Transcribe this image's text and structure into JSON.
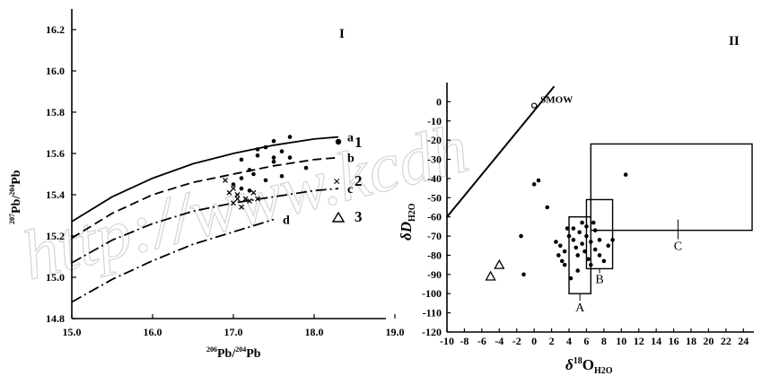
{
  "watermark": "http://www.kcdh",
  "chart_data": [
    {
      "panel_label": "I",
      "type": "scatter",
      "xlabel_parts": [
        "206",
        "Pb/",
        "204",
        "Pb"
      ],
      "ylabel_parts": [
        "207",
        "Pb/",
        "204",
        "Pb"
      ],
      "xlim": [
        15.0,
        20.0
      ],
      "ylim": [
        14.8,
        16.3
      ],
      "x_ticks": [
        15.0,
        16.0,
        17.0,
        18.0,
        19.0
      ],
      "x_tick_labels": [
        "15.0",
        "16.0",
        "17.0",
        "18.0",
        "19.0"
      ],
      "y_ticks": [
        14.8,
        15.0,
        15.2,
        15.4,
        15.6,
        15.8,
        16.0,
        16.2
      ],
      "y_tick_labels": [
        "14.8",
        "15.0",
        "15.2",
        "15.4",
        "15.6",
        "15.8",
        "16.0",
        "16.2"
      ],
      "curves": [
        {
          "label": "a",
          "style": "solid",
          "points": [
            [
              15.0,
              15.27
            ],
            [
              15.5,
              15.39
            ],
            [
              16.0,
              15.48
            ],
            [
              16.5,
              15.55
            ],
            [
              17.0,
              15.6
            ],
            [
              17.5,
              15.64
            ],
            [
              18.0,
              15.67
            ],
            [
              18.3,
              15.68
            ]
          ]
        },
        {
          "label": "b",
          "style": "dashed",
          "points": [
            [
              15.0,
              15.19
            ],
            [
              15.5,
              15.31
            ],
            [
              16.0,
              15.4
            ],
            [
              16.5,
              15.46
            ],
            [
              17.0,
              15.5
            ],
            [
              17.5,
              15.54
            ],
            [
              18.0,
              15.57
            ],
            [
              18.3,
              15.58
            ]
          ]
        },
        {
          "label": "c",
          "style": "dashdot",
          "points": [
            [
              15.0,
              15.07
            ],
            [
              15.5,
              15.18
            ],
            [
              16.0,
              15.26
            ],
            [
              16.5,
              15.32
            ],
            [
              17.0,
              15.36
            ],
            [
              17.5,
              15.39
            ],
            [
              18.0,
              15.42
            ],
            [
              18.3,
              15.43
            ]
          ]
        },
        {
          "label": "d",
          "style": "dashdot",
          "points": [
            [
              15.0,
              14.88
            ],
            [
              15.5,
              14.99
            ],
            [
              16.0,
              15.08
            ],
            [
              16.5,
              15.16
            ],
            [
              17.0,
              15.22
            ],
            [
              17.5,
              15.28
            ]
          ]
        }
      ],
      "series": [
        {
          "legend": "1",
          "marker": "dot",
          "points": [
            [
              17.1,
              15.57
            ],
            [
              17.3,
              15.62
            ],
            [
              17.4,
              15.63
            ],
            [
              17.5,
              15.66
            ],
            [
              17.7,
              15.68
            ],
            [
              17.6,
              15.61
            ],
            [
              17.5,
              15.58
            ],
            [
              17.9,
              15.53
            ],
            [
              17.6,
              15.49
            ],
            [
              17.7,
              15.58
            ],
            [
              17.2,
              15.52
            ],
            [
              17.3,
              15.59
            ],
            [
              17.5,
              15.56
            ],
            [
              17.0,
              15.45
            ],
            [
              17.1,
              15.48
            ],
            [
              17.25,
              15.5
            ],
            [
              17.4,
              15.47
            ],
            [
              17.1,
              15.43
            ],
            [
              17.2,
              15.42
            ]
          ]
        },
        {
          "legend": "2",
          "marker": "cross",
          "points": [
            [
              16.9,
              15.47
            ],
            [
              17.0,
              15.43
            ],
            [
              17.05,
              15.4
            ],
            [
              17.15,
              15.38
            ],
            [
              17.0,
              15.36
            ],
            [
              17.1,
              15.34
            ],
            [
              17.2,
              15.37
            ],
            [
              17.3,
              15.38
            ],
            [
              16.95,
              15.41
            ],
            [
              17.25,
              15.41
            ],
            [
              17.05,
              15.38
            ]
          ]
        },
        {
          "legend": "3",
          "marker": "triangle",
          "points": []
        }
      ],
      "legend_entries": [
        "1",
        "2",
        "3"
      ]
    },
    {
      "panel_label": "II",
      "type": "scatter",
      "xlabel_parts": [
        "δ",
        "18",
        "O",
        "H2O"
      ],
      "ylabel_parts": [
        "δD",
        "H2O"
      ],
      "xlim": [
        -10,
        25
      ],
      "ylim": [
        -120,
        10
      ],
      "x_ticks": [
        -10,
        -8,
        -6,
        -4,
        -2,
        0,
        2,
        4,
        6,
        8,
        10,
        12,
        14,
        16,
        18,
        20,
        22,
        24
      ],
      "x_tick_labels": [
        "-10",
        "-8",
        "-6",
        "-4",
        "-2",
        "0",
        "2",
        "4",
        "6",
        "8",
        "10",
        "12",
        "14",
        "16",
        "18",
        "20",
        "22",
        "24"
      ],
      "y_ticks": [
        0,
        -10,
        -20,
        -30,
        -40,
        -50,
        -60,
        -70,
        -80,
        -90,
        -100,
        -110,
        -120
      ],
      "y_tick_labels": [
        "0",
        "-10",
        "-20",
        "-30",
        "-40",
        "-50",
        "-60",
        "-70",
        "-80",
        "-90",
        "-100",
        "-110",
        "-120"
      ],
      "meteoric_line": [
        [
          -10,
          -60
        ],
        [
          2.3,
          8
        ]
      ],
      "smow": {
        "label": "SMOW",
        "x": 0,
        "y": -2
      },
      "regions": [
        {
          "label": "A",
          "x": [
            4,
            6.5
          ],
          "y": [
            -100,
            -60
          ]
        },
        {
          "label": "B",
          "x": [
            6,
            9
          ],
          "y": [
            -87,
            -51
          ]
        },
        {
          "label": "C",
          "x": [
            6.5,
            25
          ],
          "y": [
            -67,
            -22
          ]
        }
      ],
      "series": [
        {
          "legend": "1",
          "marker": "dot",
          "points": [
            [
              0,
              -43
            ],
            [
              0.5,
              -41
            ],
            [
              1.5,
              -55
            ],
            [
              10.5,
              -38
            ],
            [
              -1.5,
              -70
            ],
            [
              -1.2,
              -90
            ],
            [
              2.5,
              -73
            ],
            [
              3.0,
              -75
            ],
            [
              3.5,
              -78
            ],
            [
              2.8,
              -80
            ],
            [
              3.2,
              -83
            ],
            [
              3.5,
              -85
            ],
            [
              4.0,
              -70
            ],
            [
              4.5,
              -66
            ],
            [
              4.5,
              -72
            ],
            [
              4.8,
              -76
            ],
            [
              5.0,
              -80
            ],
            [
              5.2,
              -68
            ],
            [
              5.5,
              -63
            ],
            [
              5.5,
              -74
            ],
            [
              5.8,
              -78
            ],
            [
              6.0,
              -65
            ],
            [
              6.0,
              -70
            ],
            [
              6.2,
              -82
            ],
            [
              6.5,
              -73
            ],
            [
              7.0,
              -67
            ],
            [
              7.0,
              -77
            ],
            [
              7.5,
              -72
            ],
            [
              7.5,
              -80
            ],
            [
              8.5,
              -75
            ],
            [
              9.0,
              -72
            ],
            [
              4.2,
              -92
            ],
            [
              5.0,
              -88
            ],
            [
              6.5,
              -85
            ],
            [
              8.0,
              -83
            ],
            [
              3.8,
              -66
            ],
            [
              6.8,
              -63
            ]
          ]
        },
        {
          "legend": "2",
          "marker": "cross",
          "points": []
        },
        {
          "legend": "3",
          "marker": "triangle",
          "points": [
            [
              -5,
              -91
            ],
            [
              -4,
              -85
            ]
          ]
        }
      ]
    }
  ]
}
